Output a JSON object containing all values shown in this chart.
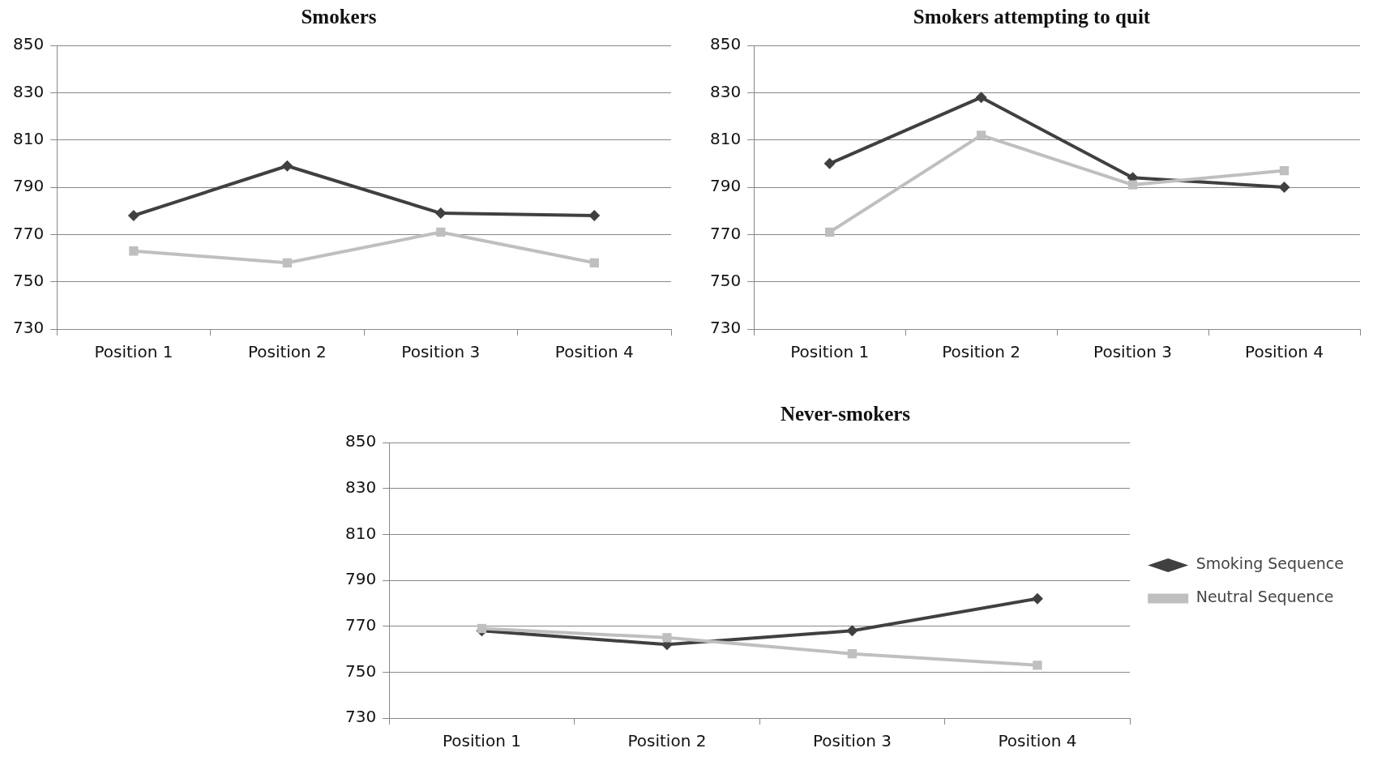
{
  "chart_data": [
    {
      "type": "line",
      "title": "Smokers",
      "categories": [
        "Position 1",
        "Position 2",
        "Position 3",
        "Position 4"
      ],
      "ylim": [
        730,
        850
      ],
      "yticks": [
        730,
        750,
        770,
        790,
        810,
        830,
        850
      ],
      "grid": "y",
      "legend": false,
      "series": [
        {
          "color": "#404040",
          "marker": "diamond",
          "values": [
            778,
            799,
            779,
            778
          ]
        },
        {
          "color": "#bfbfbf",
          "marker": "square",
          "values": [
            763,
            758,
            771,
            758
          ]
        }
      ]
    },
    {
      "type": "line",
      "title": "Smokers attempting to quit",
      "categories": [
        "Position 1",
        "Position 2",
        "Position 3",
        "Position 4"
      ],
      "ylim": [
        730,
        850
      ],
      "yticks": [
        730,
        750,
        770,
        790,
        810,
        830,
        850
      ],
      "grid": "y",
      "legend": false,
      "series": [
        {
          "color": "#404040",
          "marker": "diamond",
          "values": [
            800,
            828,
            794,
            790
          ]
        },
        {
          "color": "#bfbfbf",
          "marker": "square",
          "values": [
            771,
            812,
            791,
            797
          ]
        }
      ]
    },
    {
      "type": "line",
      "title": "Never-smokers",
      "categories": [
        "Position 1",
        "Position 2",
        "Position 3",
        "Position 4"
      ],
      "ylim": [
        730,
        850
      ],
      "yticks": [
        730,
        750,
        770,
        790,
        810,
        830,
        850
      ],
      "grid": "y",
      "legend": "right",
      "series": [
        {
          "name": "Smoking Sequence",
          "color": "#404040",
          "marker": "diamond",
          "values": [
            768,
            762,
            768,
            782
          ]
        },
        {
          "name": "Neutral Sequence",
          "color": "#bfbfbf",
          "marker": "square",
          "values": [
            769,
            765,
            758,
            753
          ]
        }
      ]
    }
  ]
}
